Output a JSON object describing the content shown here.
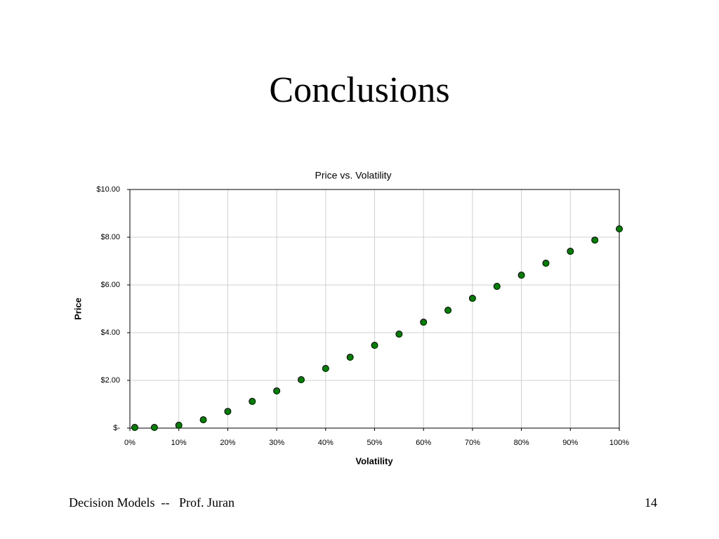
{
  "slide_title": "Conclusions",
  "footer": "Decision Models  --   Prof. Juran",
  "page_number": "14",
  "chart_data": {
    "type": "scatter",
    "title": "Price vs. Volatility",
    "x_label": "Volatility",
    "y_label": "Price",
    "x": [
      1,
      5,
      10,
      15,
      20,
      25,
      30,
      35,
      40,
      45,
      50,
      55,
      60,
      65,
      70,
      75,
      80,
      85,
      90,
      95,
      100
    ],
    "values": [
      0.03,
      0.03,
      0.12,
      0.35,
      0.7,
      1.12,
      1.56,
      2.03,
      2.5,
      2.97,
      3.47,
      3.94,
      4.44,
      4.94,
      5.44,
      5.94,
      6.41,
      6.91,
      7.41,
      7.88,
      8.35
    ],
    "color": "#008000",
    "xlim": [
      0,
      100
    ],
    "xticks": [
      {
        "value": 0,
        "label": "0%"
      },
      {
        "value": 10,
        "label": "10%"
      },
      {
        "value": 20,
        "label": "20%"
      },
      {
        "value": 30,
        "label": "30%"
      },
      {
        "value": 40,
        "label": "40%"
      },
      {
        "value": 50,
        "label": "50%"
      },
      {
        "value": 60,
        "label": "60%"
      },
      {
        "value": 70,
        "label": "70%"
      },
      {
        "value": 80,
        "label": "80%"
      },
      {
        "value": 90,
        "label": "90%"
      },
      {
        "value": 100,
        "label": "100%"
      }
    ],
    "ylim": [
      0,
      10
    ],
    "yticks": [
      {
        "value": 0,
        "label": "$-"
      },
      {
        "value": 2,
        "label": "$2.00"
      },
      {
        "value": 4,
        "label": "$4.00"
      },
      {
        "value": 6,
        "label": "$6.00"
      },
      {
        "value": 8,
        "label": "$8.00"
      },
      {
        "value": 10,
        "label": "$10.00"
      }
    ],
    "grid": true
  }
}
